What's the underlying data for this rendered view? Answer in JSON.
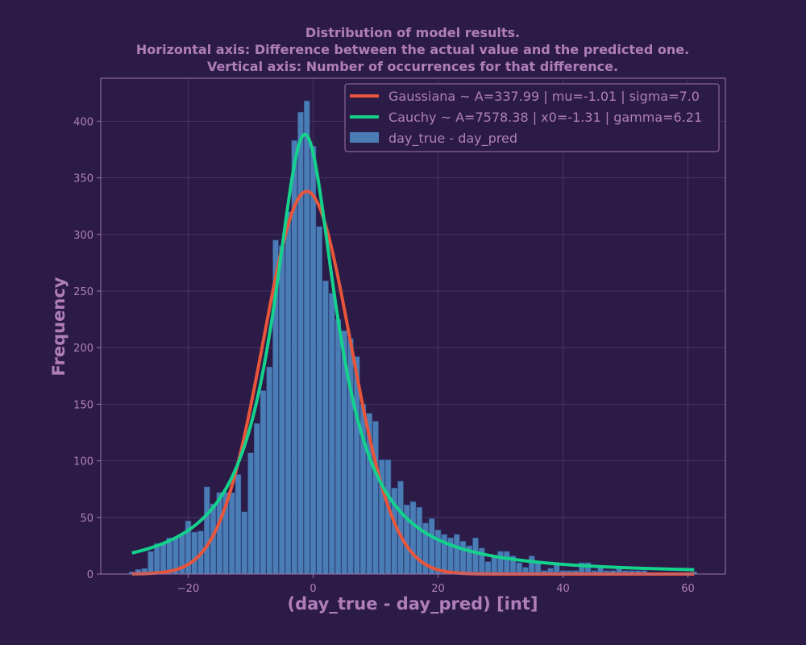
{
  "colors": {
    "background": "#2c1b47",
    "text": "#b07fb8",
    "grid": "#4e3a68",
    "frame": "#9c75a8",
    "bar": "#4a7cb6",
    "bar_edge": "#2f4f86",
    "gaussian": "#e8553a",
    "cauchy": "#14d18c",
    "legend_bg": "#2c1b47",
    "legend_edge": "#9c75a8"
  },
  "chart_data": {
    "type": "bar",
    "title_lines": [
      "Distribution of model results.",
      "Horizontal axis: Difference between the actual value and the predicted one.",
      "Vertical axis: Number of occurrences for that difference."
    ],
    "xlabel": "(day_true - day_pred) [int]",
    "ylabel": "Frequency",
    "xlim": [
      -34,
      66
    ],
    "ylim": [
      0,
      438
    ],
    "xticks": [
      -20,
      0,
      20,
      40,
      60
    ],
    "xtick_labels": [
      "−20",
      "0",
      "20",
      "40",
      "60"
    ],
    "yticks": [
      0,
      50,
      100,
      150,
      200,
      250,
      300,
      350,
      400
    ],
    "ytick_labels": [
      "0",
      "50",
      "100",
      "150",
      "200",
      "250",
      "300",
      "350",
      "400"
    ],
    "grid": true,
    "legend_position": "top-right",
    "bar_series_name": "day_true - day_pred",
    "bar_x": [
      -29,
      -28,
      -27,
      -26,
      -25,
      -24,
      -23,
      -22,
      -21,
      -20,
      -19,
      -18,
      -17,
      -16,
      -15,
      -14,
      -13,
      -12,
      -11,
      -10,
      -9,
      -8,
      -7,
      -6,
      -5,
      -4,
      -3,
      -2,
      -1,
      0,
      1,
      2,
      3,
      4,
      5,
      6,
      7,
      8,
      9,
      10,
      11,
      12,
      13,
      14,
      15,
      16,
      17,
      18,
      19,
      20,
      21,
      22,
      23,
      24,
      25,
      26,
      27,
      28,
      29,
      30,
      31,
      32,
      33,
      34,
      35,
      36,
      37,
      38,
      39,
      40,
      41,
      42,
      43,
      44,
      45,
      46,
      47,
      48,
      49,
      50,
      51,
      52,
      53,
      54,
      55,
      56,
      57,
      58,
      59,
      60,
      61
    ],
    "bar_values": [
      2,
      4,
      5,
      20,
      27,
      27,
      32,
      32,
      35,
      47,
      37,
      38,
      77,
      62,
      72,
      72,
      72,
      88,
      55,
      107,
      133,
      162,
      183,
      295,
      290,
      320,
      383,
      408,
      418,
      378,
      307,
      259,
      248,
      225,
      215,
      208,
      192,
      150,
      142,
      135,
      101,
      101,
      76,
      82,
      61,
      64,
      59,
      45,
      49,
      39,
      35,
      32,
      35,
      29,
      25,
      32,
      23,
      11,
      16,
      20,
      20,
      16,
      10,
      6,
      16,
      10,
      3,
      5,
      8,
      3,
      3,
      3,
      10,
      10,
      3,
      6,
      3,
      3,
      6,
      3,
      3,
      3,
      3,
      1,
      0,
      0,
      1,
      0,
      0,
      0,
      2
    ],
    "series": [
      {
        "name": "Gaussiana ~ A=337.99 | mu=-1.01 | sigma=7.0",
        "kind": "gaussian",
        "A": 337.99,
        "mu": -1.01,
        "sigma": 7.0
      },
      {
        "name": "Cauchy ~ A=7578.38 | x0=-1.31 | gamma=6.21",
        "kind": "cauchy",
        "A": 7578.38,
        "x0": -1.31,
        "gamma": 6.21
      }
    ],
    "curve_range": [
      -29,
      61
    ]
  }
}
